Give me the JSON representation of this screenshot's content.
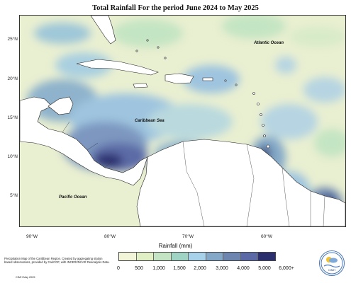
{
  "title": "Total Rainfall For the period June 2024 to May 2025",
  "map_labels": {
    "atlantic": "Atlantic Ocean",
    "caribbean": "Caribbean Sea",
    "pacific": "Pacific Ocean"
  },
  "lat_ticks": [
    "25°N",
    "20°N",
    "15°N",
    "10°N",
    "5°N"
  ],
  "lon_ticks": [
    "90°W",
    "80°W",
    "70°W",
    "60°W"
  ],
  "legend": {
    "title": "Rainfall (mm)",
    "labels": [
      "0",
      "500",
      "1,000",
      "1,500",
      "2,000",
      "3,000",
      "4,000",
      "5,000",
      "6,000+"
    ],
    "colors": [
      "#f3f5d8",
      "#e1f0c4",
      "#c4e5c3",
      "#9fd3c3",
      "#a8d2ea",
      "#84a9c8",
      "#6c86b0",
      "#5b6aa6",
      "#2b2f6e"
    ]
  },
  "footnote": "Precipitation Map of the Caribbean Region. Created by aggregating station based observations, provided by CariCOF, with INCERI/NCAR Reanalysis Data.",
  "credit": "CIMH May 2025",
  "logo_text": "CIMH"
}
